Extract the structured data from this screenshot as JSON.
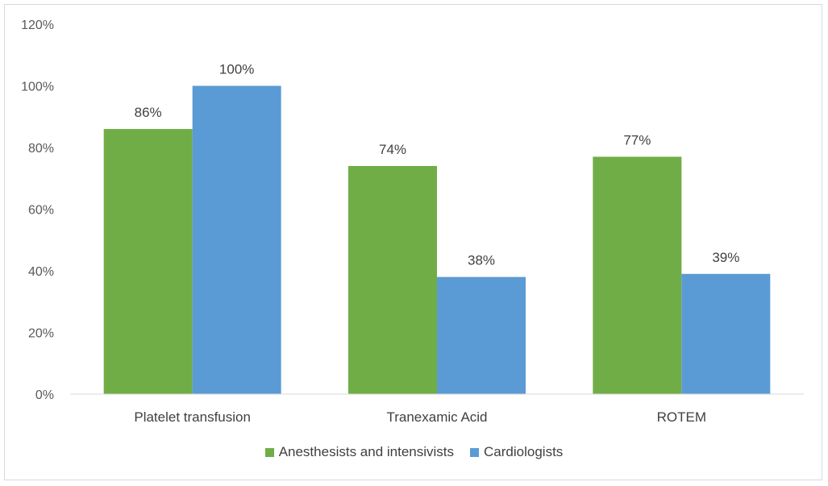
{
  "chart_data": {
    "type": "bar",
    "categories": [
      "Platelet transfusion",
      "Tranexamic Acid",
      "ROTEM"
    ],
    "series": [
      {
        "name": "Anesthesists and intensivists",
        "values": [
          86,
          74,
          77
        ],
        "labels": [
          "86%",
          "74%",
          "77%"
        ],
        "color": "#70ad47"
      },
      {
        "name": "Cardiologists",
        "values": [
          100,
          38,
          39
        ],
        "labels": [
          "100%",
          "38%",
          "39%"
        ],
        "color": "#5b9bd5"
      }
    ],
    "ylim": [
      0,
      120
    ],
    "yticks": [
      "0%",
      "20%",
      "40%",
      "60%",
      "80%",
      "100%",
      "120%"
    ],
    "grid": false,
    "legend": "bottom",
    "title": "",
    "xlabel": "",
    "ylabel": ""
  }
}
